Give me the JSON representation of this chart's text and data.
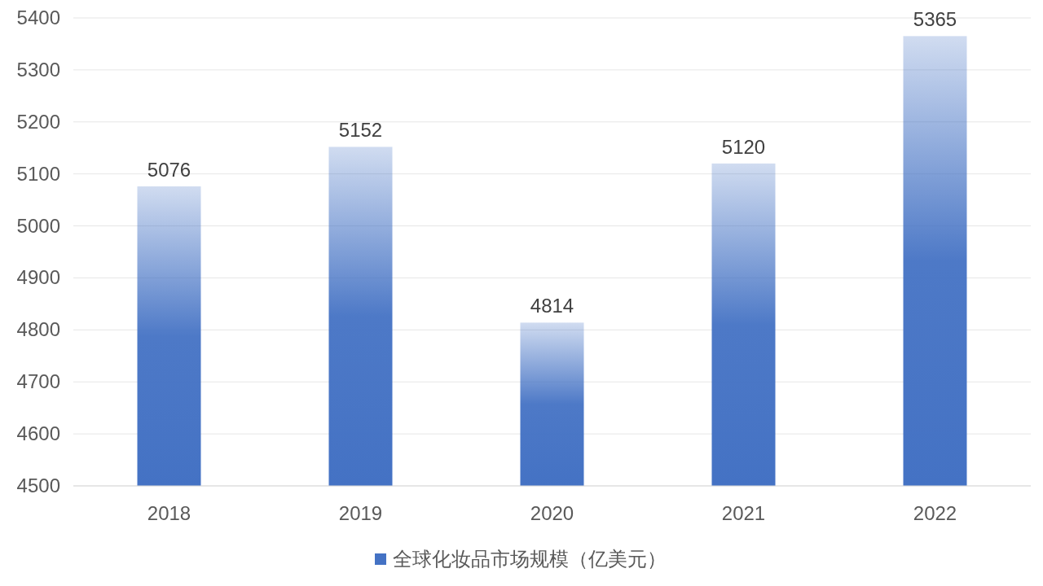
{
  "chart_data": {
    "type": "bar",
    "categories": [
      "2018",
      "2019",
      "2020",
      "2021",
      "2022"
    ],
    "series": [
      {
        "name": "全球化妆品市场规模（亿美元）",
        "color": "#4472c4",
        "values": [
          5076,
          5152,
          4814,
          5120,
          5365
        ]
      }
    ],
    "ylim": [
      4500,
      5400
    ],
    "yticks": [
      4500,
      4600,
      4700,
      4800,
      4900,
      5000,
      5100,
      5200,
      5300,
      5400
    ],
    "grid": "y",
    "legend": "bottom",
    "data_labels": true
  }
}
